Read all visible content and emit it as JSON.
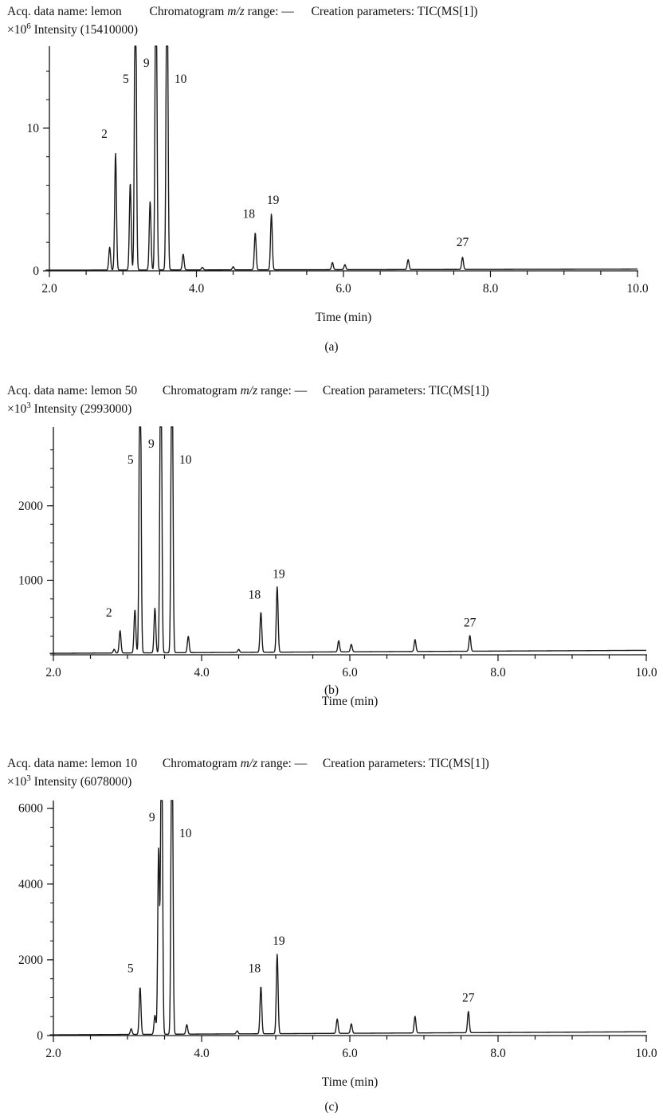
{
  "chart_data": [
    {
      "type": "line",
      "panel_label": "(a)",
      "header": {
        "acq_label": "Acq. data name:",
        "acq_name": "lemon",
        "range_label_pre": "Chromatogram",
        "range_label_mz": "m/z",
        "range_label_post": "range: —",
        "creation_label": "Creation parameters:",
        "creation_value": "TIC(MS[1])",
        "scale": "×10",
        "scale_exp": "6",
        "intensity_label": "Intensity (15410000)"
      },
      "xlabel": "Time (min)",
      "xlim": [
        2.0,
        10.0
      ],
      "ylim": [
        0,
        15.41
      ],
      "x_ticks": [
        "2.0",
        "4.0",
        "6.0",
        "8.0",
        "10.0"
      ],
      "y_ticks": [
        {
          "value": 0,
          "label": "0"
        },
        {
          "value": 10,
          "label": "10"
        }
      ],
      "baseline": [
        0.05,
        0.12
      ],
      "peaks": [
        {
          "x": 2.82,
          "y": 1.6,
          "label": ""
        },
        {
          "x": 2.9,
          "y": 8.2,
          "label": "2"
        },
        {
          "x": 3.1,
          "y": 6.1,
          "label": ""
        },
        {
          "x": 3.17,
          "y": 15.41,
          "label": "5"
        },
        {
          "x": 3.37,
          "y": 4.8,
          "label": ""
        },
        {
          "x": 3.45,
          "y": 15.41,
          "label": "9"
        },
        {
          "x": 3.6,
          "y": 15.41,
          "label": "10"
        },
        {
          "x": 3.82,
          "y": 1.1,
          "label": ""
        },
        {
          "x": 4.08,
          "y": 0.18,
          "label": ""
        },
        {
          "x": 4.5,
          "y": 0.22,
          "label": ""
        },
        {
          "x": 4.8,
          "y": 2.6,
          "label": "18"
        },
        {
          "x": 5.02,
          "y": 3.9,
          "label": "19"
        },
        {
          "x": 5.85,
          "y": 0.5,
          "label": ""
        },
        {
          "x": 6.02,
          "y": 0.35,
          "label": ""
        },
        {
          "x": 6.88,
          "y": 0.7,
          "label": ""
        },
        {
          "x": 7.62,
          "y": 0.85,
          "label": "27"
        }
      ]
    },
    {
      "type": "line",
      "panel_label": "(b)",
      "header": {
        "acq_label": "Acq. data name:",
        "acq_name": "lemon 50",
        "range_label_pre": "Chromatogram",
        "range_label_mz": "m/z",
        "range_label_post": "range: —",
        "creation_label": "Creation parameters:",
        "creation_value": "TIC(MS[1])",
        "scale": "×10",
        "scale_exp": "3",
        "intensity_label": "Intensity (2993000)"
      },
      "xlabel": "Time (min)",
      "xlim": [
        2.0,
        10.0
      ],
      "ylim": [
        0,
        2993
      ],
      "x_ticks": [
        "2.0",
        "4.0",
        "6.0",
        "8.0",
        "10.0"
      ],
      "y_ticks": [
        {
          "value": 1000,
          "label": "1000"
        },
        {
          "value": 2000,
          "label": "2000"
        }
      ],
      "baseline": [
        20,
        60
      ],
      "peaks": [
        {
          "x": 2.82,
          "y": 50,
          "label": ""
        },
        {
          "x": 2.9,
          "y": 300,
          "label": "2"
        },
        {
          "x": 3.1,
          "y": 580,
          "label": ""
        },
        {
          "x": 3.17,
          "y": 2993,
          "label": "5"
        },
        {
          "x": 3.37,
          "y": 600,
          "label": ""
        },
        {
          "x": 3.45,
          "y": 2993,
          "label": "9"
        },
        {
          "x": 3.6,
          "y": 2993,
          "label": "10"
        },
        {
          "x": 3.82,
          "y": 220,
          "label": ""
        },
        {
          "x": 4.5,
          "y": 40,
          "label": ""
        },
        {
          "x": 4.8,
          "y": 540,
          "label": "18"
        },
        {
          "x": 5.02,
          "y": 880,
          "label": "19"
        },
        {
          "x": 5.85,
          "y": 150,
          "label": ""
        },
        {
          "x": 6.02,
          "y": 100,
          "label": ""
        },
        {
          "x": 6.88,
          "y": 160,
          "label": ""
        },
        {
          "x": 7.62,
          "y": 210,
          "label": "27"
        }
      ]
    },
    {
      "type": "line",
      "panel_label": "(c)",
      "header": {
        "acq_label": "Acq. data name:",
        "acq_name": "lemon 10",
        "range_label_pre": "Chromatogram",
        "range_label_mz": "m/z",
        "range_label_post": "range: —",
        "creation_label": "Creation parameters:",
        "creation_value": "TIC(MS[1])",
        "scale": "×10",
        "scale_exp": "3",
        "intensity_label": "Intensity (6078000)"
      },
      "xlabel": "Time (min)",
      "xlim": [
        2.0,
        10.0
      ],
      "ylim": [
        0,
        6078
      ],
      "x_ticks": [
        "2.0",
        "4.0",
        "6.0",
        "8.0",
        "10.0"
      ],
      "y_ticks": [
        {
          "value": 0,
          "label": "0"
        },
        {
          "value": 2000,
          "label": "2000"
        },
        {
          "value": 4000,
          "label": "4000"
        },
        {
          "value": 6000,
          "label": "6000"
        }
      ],
      "baseline": [
        20,
        100
      ],
      "peaks": [
        {
          "x": 3.05,
          "y": 150,
          "label": ""
        },
        {
          "x": 3.17,
          "y": 1250,
          "label": "5"
        },
        {
          "x": 3.37,
          "y": 500,
          "label": ""
        },
        {
          "x": 3.42,
          "y": 4900,
          "label": ""
        },
        {
          "x": 3.46,
          "y": 6078,
          "label": "9"
        },
        {
          "x": 3.6,
          "y": 6078,
          "label": "10"
        },
        {
          "x": 3.8,
          "y": 250,
          "label": ""
        },
        {
          "x": 4.48,
          "y": 80,
          "label": ""
        },
        {
          "x": 4.8,
          "y": 1250,
          "label": "18"
        },
        {
          "x": 5.02,
          "y": 2100,
          "label": "19"
        },
        {
          "x": 5.83,
          "y": 380,
          "label": ""
        },
        {
          "x": 6.02,
          "y": 250,
          "label": ""
        },
        {
          "x": 6.88,
          "y": 440,
          "label": ""
        },
        {
          "x": 7.6,
          "y": 560,
          "label": "27"
        }
      ]
    }
  ]
}
